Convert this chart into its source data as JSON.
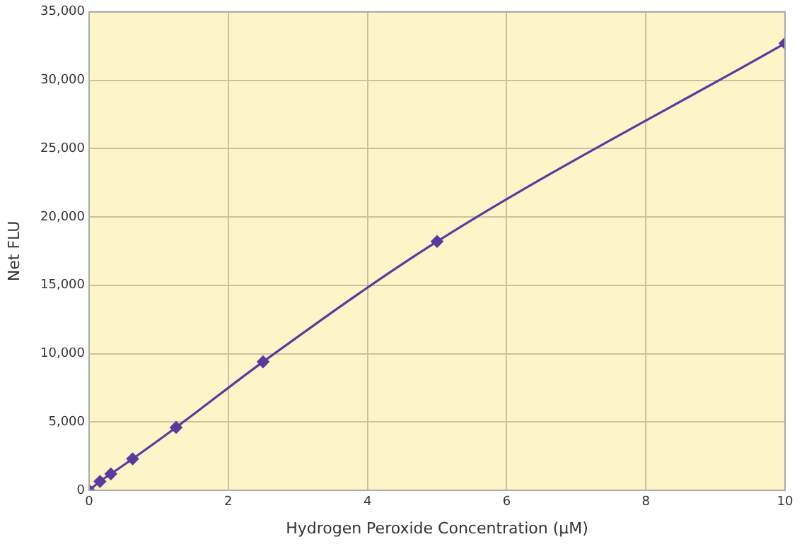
{
  "chart_data": {
    "type": "line",
    "xlabel": "Hydrogen Peroxide Concentration (µM)",
    "ylabel": "Net FLU",
    "x": [
      0,
      0.156,
      0.3125,
      0.625,
      1.25,
      2.5,
      5,
      10
    ],
    "series": [
      {
        "color": "#5b3a9e",
        "values": [
          0,
          650,
          1200,
          2300,
          4600,
          9400,
          18200,
          32700
        ]
      }
    ],
    "xlim": [
      0,
      10
    ],
    "xticks": [
      0,
      2,
      4,
      6,
      8,
      10
    ],
    "ylim": [
      0,
      35000
    ],
    "yticks": [
      0,
      {
        "value": 5000,
        "label": "5,000"
      },
      {
        "value": 10000,
        "label": "10,000"
      },
      {
        "value": 15000,
        "label": "15,000"
      },
      {
        "value": 20000,
        "label": "20,000"
      },
      {
        "value": 25000,
        "label": "25,000"
      },
      {
        "value": 30000,
        "label": "30,000"
      },
      {
        "value": 35000,
        "label": "35,000"
      }
    ],
    "grid": true,
    "marker": "diamond",
    "line_style": "solid"
  }
}
